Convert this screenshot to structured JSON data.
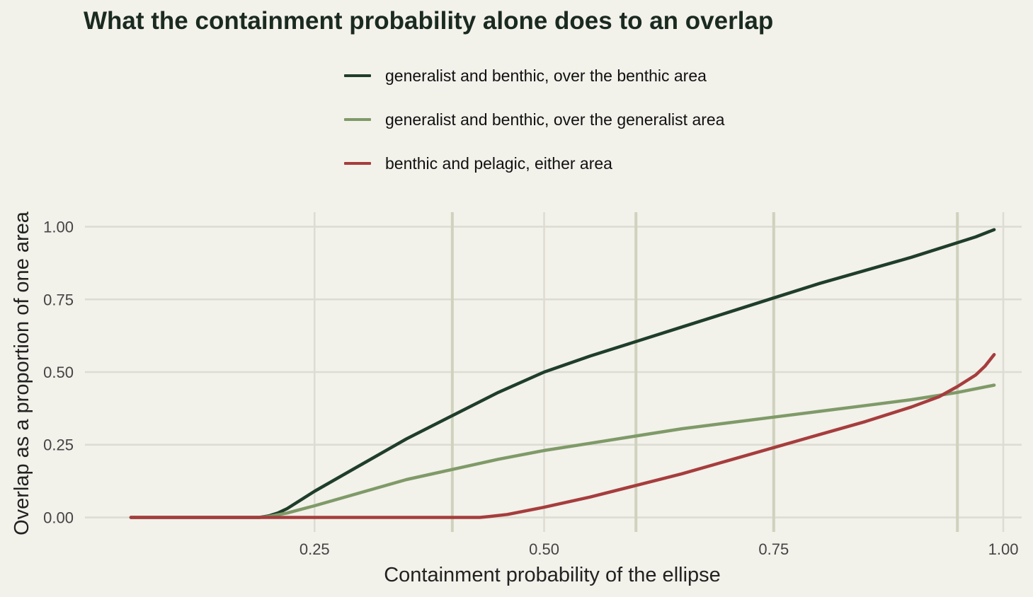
{
  "chart_data": {
    "type": "line",
    "title": "What the containment probability alone does to an overlap",
    "xlabel": "Containment probability of the ellipse",
    "ylabel": "Overlap as a proportion of one area",
    "xlim": [
      0.0,
      1.02
    ],
    "ylim": [
      -0.05,
      1.05
    ],
    "xticks": [
      0.25,
      0.5,
      0.75,
      1.0
    ],
    "xtick_labels": [
      "0.25",
      "0.50",
      "0.75",
      "1.00"
    ],
    "yticks": [
      0.0,
      0.25,
      0.5,
      0.75,
      1.0
    ],
    "ytick_labels": [
      "0.00",
      "0.25",
      "0.50",
      "0.75",
      "1.00"
    ],
    "vertical_reference_lines": [
      0.4,
      0.6,
      0.75,
      0.95
    ],
    "grid": true,
    "legend_position": "top",
    "series": [
      {
        "name": "generalist and benthic, over the benthic area",
        "color": "#1f3d2b",
        "x": [
          0.05,
          0.1,
          0.15,
          0.19,
          0.2,
          0.21,
          0.22,
          0.25,
          0.3,
          0.35,
          0.4,
          0.45,
          0.5,
          0.55,
          0.6,
          0.65,
          0.7,
          0.75,
          0.8,
          0.85,
          0.9,
          0.95,
          0.97,
          0.99
        ],
        "y": [
          0.0,
          0.0,
          0.0,
          0.0,
          0.005,
          0.015,
          0.03,
          0.09,
          0.18,
          0.27,
          0.35,
          0.43,
          0.5,
          0.555,
          0.605,
          0.655,
          0.705,
          0.755,
          0.805,
          0.85,
          0.895,
          0.945,
          0.965,
          0.99
        ]
      },
      {
        "name": "generalist and benthic, over the generalist area",
        "color": "#7f9a68",
        "x": [
          0.05,
          0.1,
          0.15,
          0.19,
          0.2,
          0.22,
          0.25,
          0.3,
          0.35,
          0.4,
          0.45,
          0.5,
          0.55,
          0.6,
          0.65,
          0.7,
          0.75,
          0.8,
          0.85,
          0.9,
          0.95,
          0.99
        ],
        "y": [
          0.0,
          0.0,
          0.0,
          0.0,
          0.003,
          0.015,
          0.04,
          0.085,
          0.13,
          0.165,
          0.2,
          0.23,
          0.255,
          0.28,
          0.305,
          0.325,
          0.345,
          0.365,
          0.385,
          0.405,
          0.43,
          0.455
        ]
      },
      {
        "name": "benthic and pelagic, either area",
        "color": "#a63d3d",
        "x": [
          0.05,
          0.1,
          0.2,
          0.3,
          0.4,
          0.43,
          0.44,
          0.46,
          0.5,
          0.55,
          0.6,
          0.65,
          0.7,
          0.75,
          0.8,
          0.85,
          0.9,
          0.93,
          0.95,
          0.97,
          0.98,
          0.99
        ],
        "y": [
          0.0,
          0.0,
          0.0,
          0.0,
          0.0,
          0.0,
          0.003,
          0.01,
          0.035,
          0.07,
          0.11,
          0.15,
          0.195,
          0.24,
          0.285,
          0.33,
          0.38,
          0.415,
          0.45,
          0.49,
          0.52,
          0.56
        ]
      }
    ]
  }
}
